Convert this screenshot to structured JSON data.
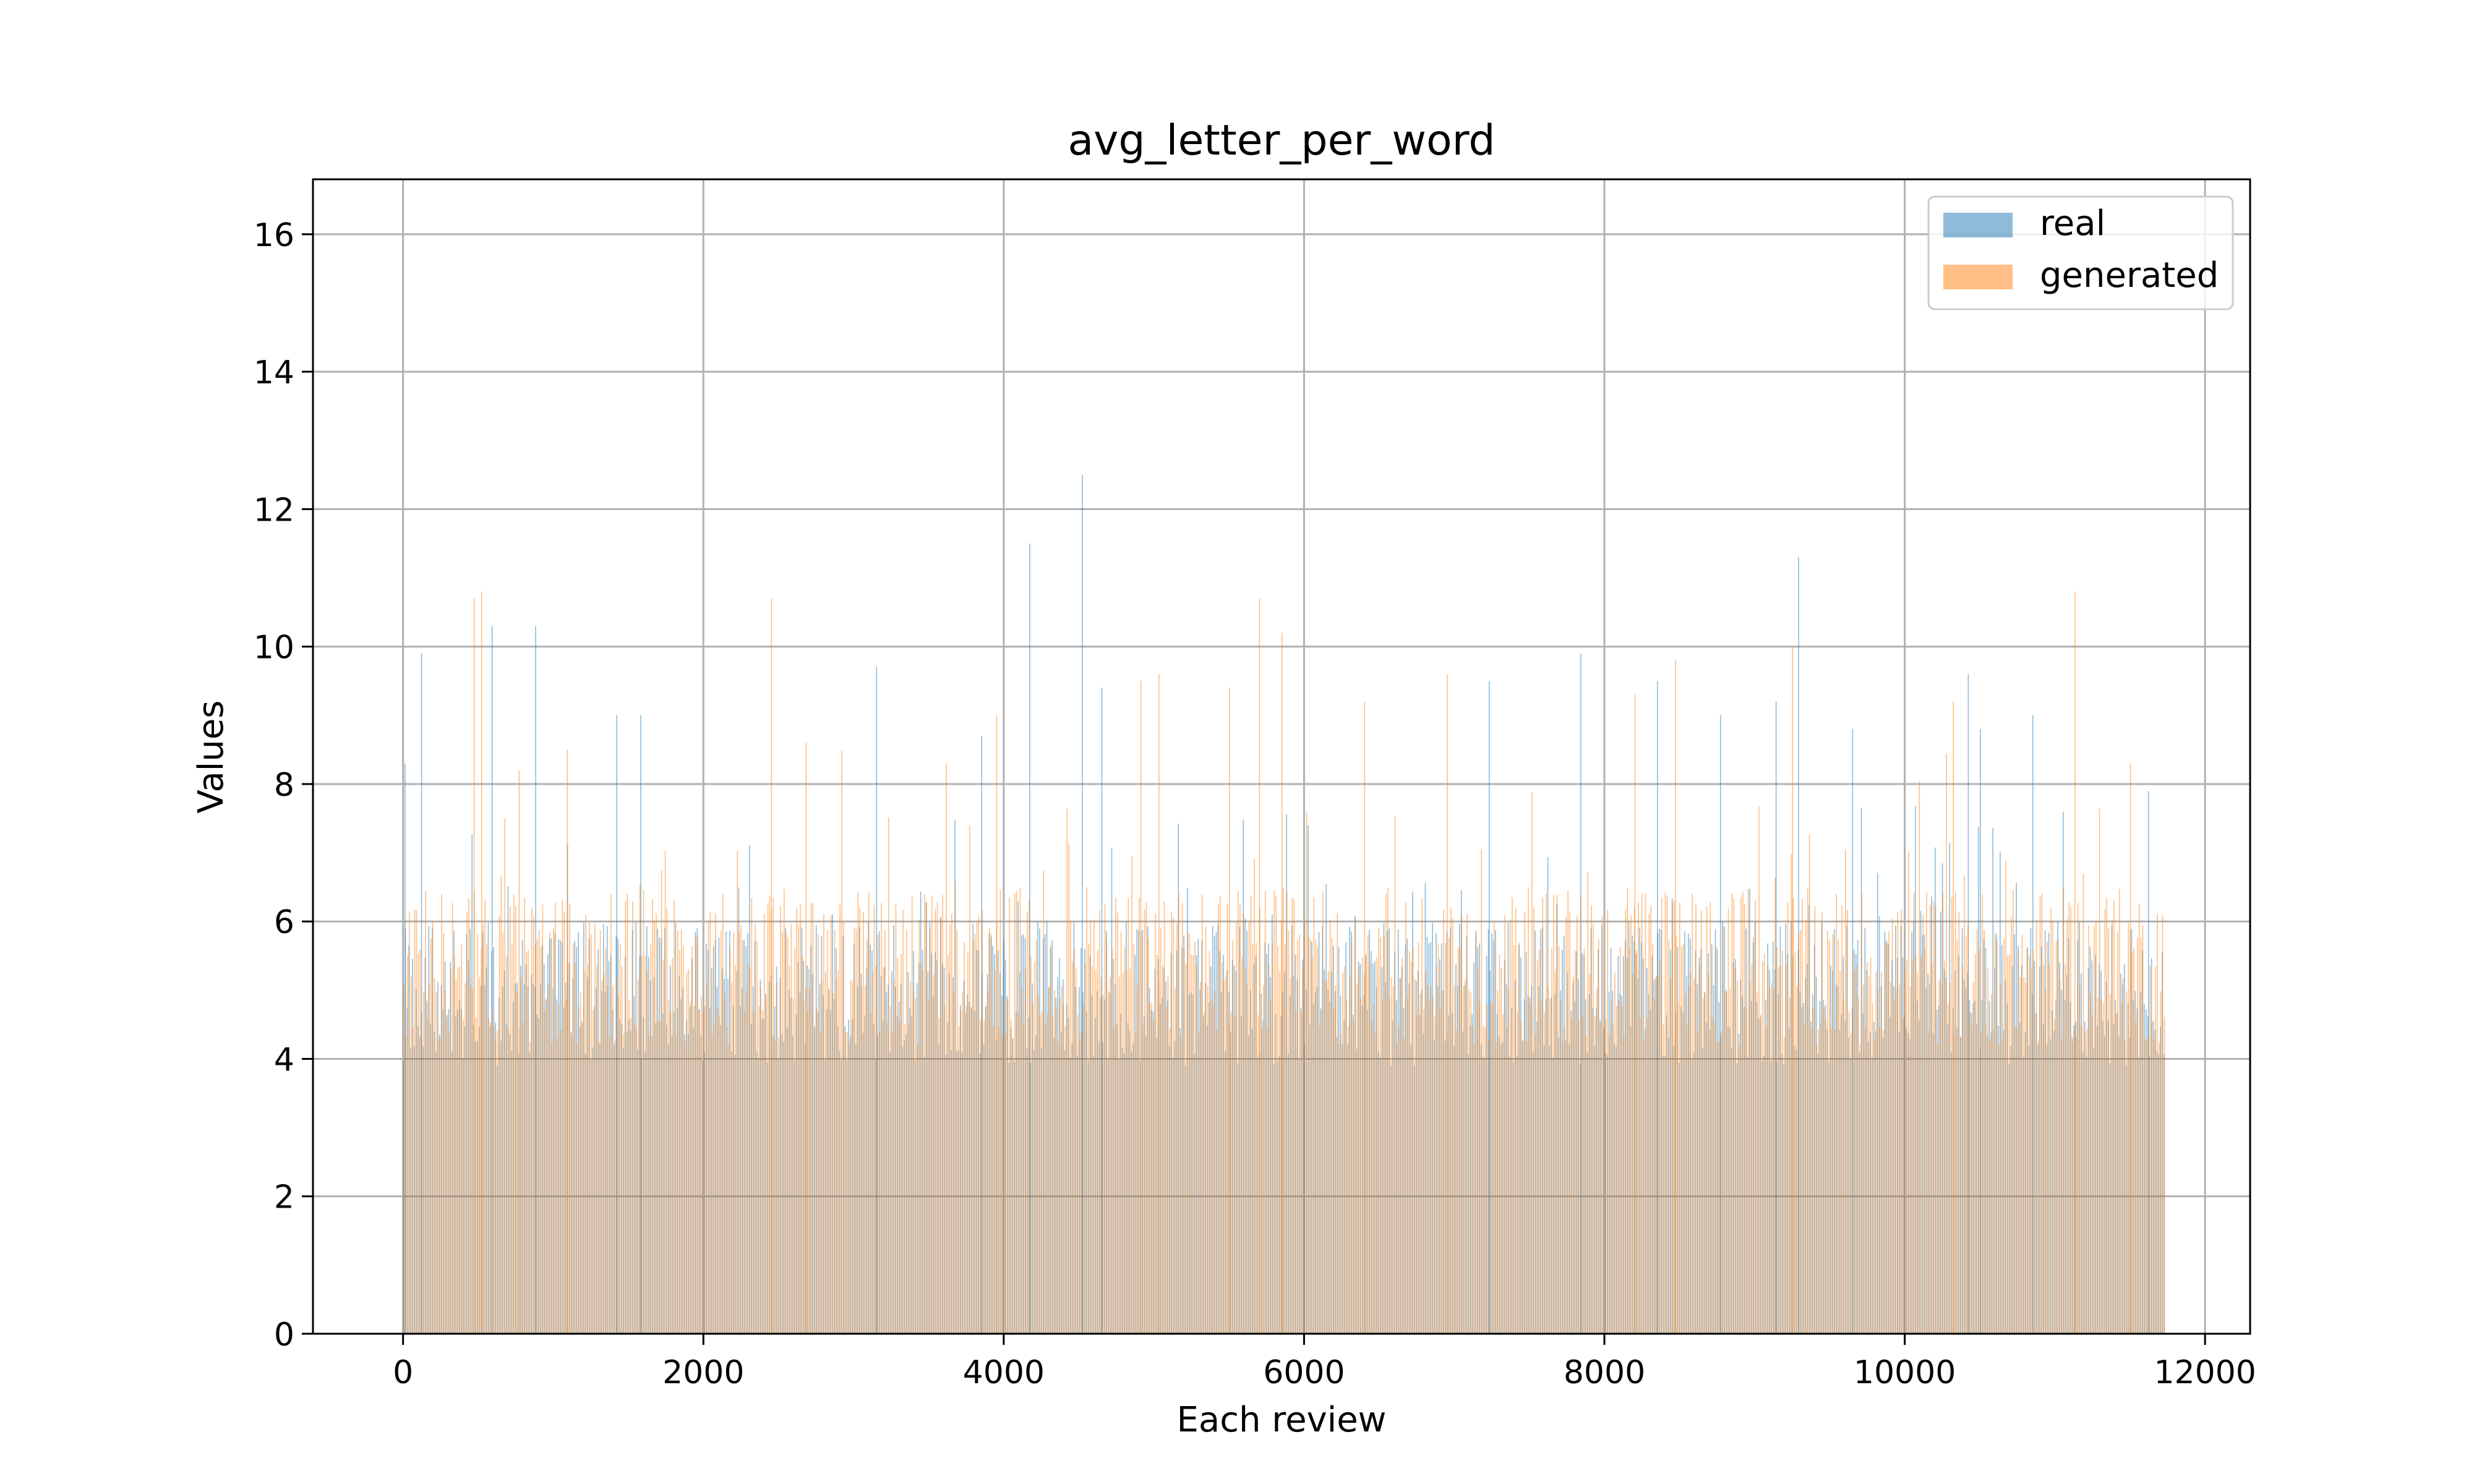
{
  "chart_data": {
    "type": "bar",
    "title": "avg_letter_per_word",
    "xlabel": "Each review",
    "ylabel": "Values",
    "xlim": [
      -600,
      12300
    ],
    "ylim": [
      0,
      16.8
    ],
    "x_ticks": [
      0,
      2000,
      4000,
      6000,
      8000,
      10000,
      12000
    ],
    "y_ticks": [
      0,
      2,
      4,
      6,
      8,
      10,
      12,
      14,
      16
    ],
    "x_tick_labels": [
      "0",
      "2000",
      "4000",
      "6000",
      "8000",
      "10000",
      "12000"
    ],
    "y_tick_labels": [
      "0",
      "2",
      "4",
      "6",
      "8",
      "10",
      "12",
      "14",
      "16"
    ],
    "grid": true,
    "legend_position": "top-right",
    "x_range": [
      0,
      11730
    ],
    "series": [
      {
        "name": "real",
        "color": "#1f77b4",
        "opacity": 0.5,
        "typical_range": [
          3.9,
          6.0
        ],
        "peaks": [
          {
            "x": 10,
            "y": 8.3
          },
          {
            "x": 120,
            "y": 9.9
          },
          {
            "x": 590,
            "y": 10.3
          },
          {
            "x": 880,
            "y": 10.3
          },
          {
            "x": 1420,
            "y": 9.0
          },
          {
            "x": 1580,
            "y": 9.0
          },
          {
            "x": 3150,
            "y": 9.7
          },
          {
            "x": 3850,
            "y": 8.7
          },
          {
            "x": 4170,
            "y": 11.5
          },
          {
            "x": 4520,
            "y": 12.5
          },
          {
            "x": 4650,
            "y": 9.4
          },
          {
            "x": 7230,
            "y": 9.5
          },
          {
            "x": 7840,
            "y": 9.9
          },
          {
            "x": 8350,
            "y": 9.5
          },
          {
            "x": 8770,
            "y": 9.0
          },
          {
            "x": 9140,
            "y": 9.2
          },
          {
            "x": 9290,
            "y": 11.3
          },
          {
            "x": 9650,
            "y": 8.8
          },
          {
            "x": 10420,
            "y": 9.6
          },
          {
            "x": 10500,
            "y": 8.8
          },
          {
            "x": 10850,
            "y": 9.0
          },
          {
            "x": 11620,
            "y": 7.9
          }
        ]
      },
      {
        "name": "generated",
        "color": "#ff7f0e",
        "opacity": 0.5,
        "typical_range": [
          4.2,
          6.5
        ],
        "peaks": [
          {
            "x": 470,
            "y": 10.7
          },
          {
            "x": 520,
            "y": 10.8
          },
          {
            "x": 770,
            "y": 8.2
          },
          {
            "x": 1090,
            "y": 8.5
          },
          {
            "x": 2450,
            "y": 10.7
          },
          {
            "x": 2680,
            "y": 8.6
          },
          {
            "x": 3950,
            "y": 9.0
          },
          {
            "x": 4910,
            "y": 9.5
          },
          {
            "x": 5030,
            "y": 9.6
          },
          {
            "x": 5500,
            "y": 9.4
          },
          {
            "x": 5700,
            "y": 10.7
          },
          {
            "x": 5850,
            "y": 10.2
          },
          {
            "x": 6400,
            "y": 9.2
          },
          {
            "x": 6950,
            "y": 9.6
          },
          {
            "x": 8200,
            "y": 9.3
          },
          {
            "x": 8470,
            "y": 9.8
          },
          {
            "x": 9250,
            "y": 10.0
          },
          {
            "x": 10320,
            "y": 9.2
          },
          {
            "x": 11130,
            "y": 10.8
          },
          {
            "x": 11500,
            "y": 8.3
          }
        ]
      }
    ]
  }
}
